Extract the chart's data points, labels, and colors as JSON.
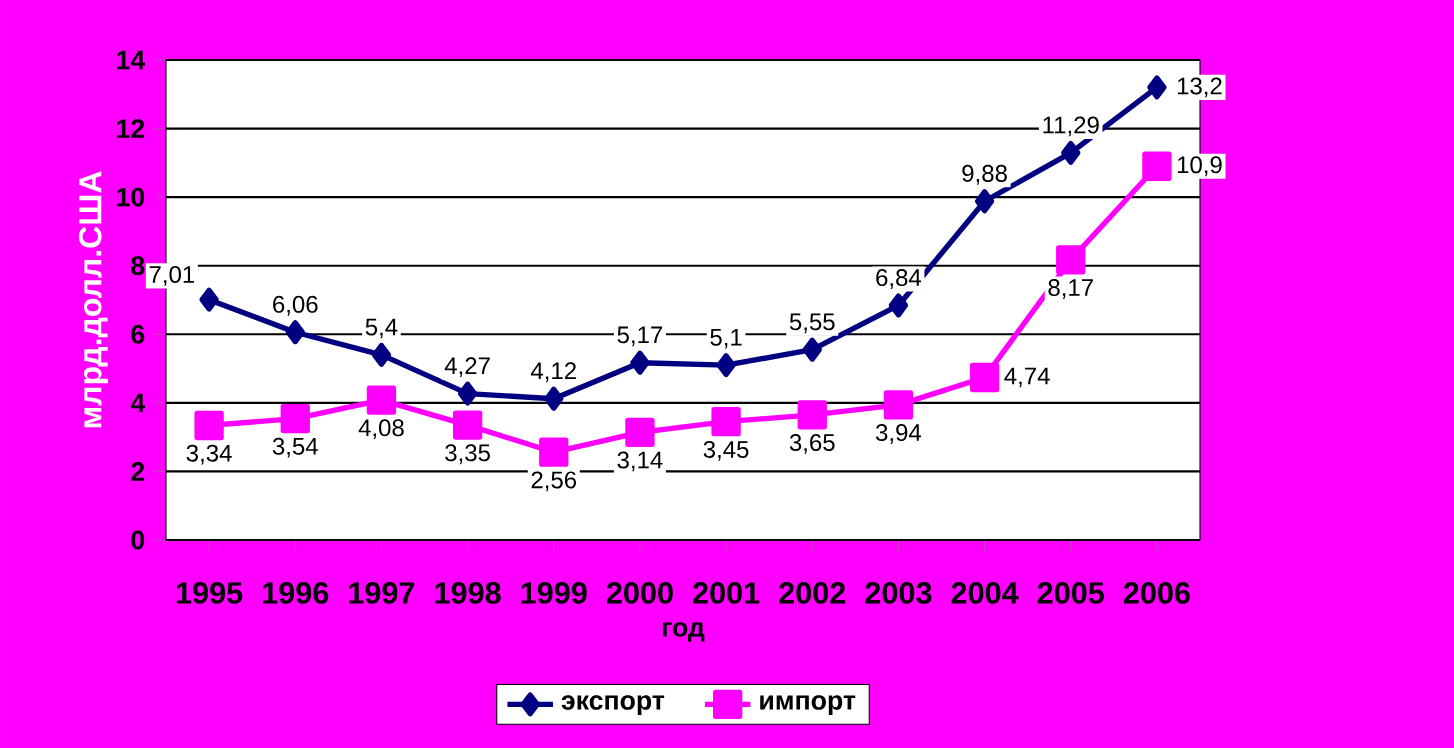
{
  "chart_data": {
    "type": "line",
    "xlabel": "год",
    "ylabel": "млрд.долл.США",
    "categories": [
      "1995",
      "1996",
      "1997",
      "1998",
      "1999",
      "2000",
      "2001",
      "2002",
      "2003",
      "2004",
      "2005",
      "2006"
    ],
    "series": [
      {
        "name": "экспорт",
        "color": "#000080",
        "marker": "diamond",
        "values": [
          7.01,
          6.06,
          5.4,
          4.27,
          4.12,
          5.17,
          5.1,
          5.55,
          6.84,
          9.88,
          11.29,
          13.2
        ],
        "value_labels": [
          "7,01",
          "6,06",
          "5,4",
          "4,27",
          "4,12",
          "5,17",
          "5,1",
          "5,55",
          "6,84",
          "9,88",
          "11,29",
          "13,2"
        ]
      },
      {
        "name": "импорт",
        "color": "#ff00ff",
        "marker": "square",
        "values": [
          3.34,
          3.54,
          4.08,
          3.35,
          2.56,
          3.14,
          3.45,
          3.65,
          3.94,
          4.74,
          8.17,
          10.9
        ],
        "value_labels": [
          "3,34",
          "3,54",
          "4,08",
          "3,35",
          "2,56",
          "3,14",
          "3,45",
          "3,65",
          "3,94",
          "4,74",
          "8,17",
          "10,9"
        ]
      }
    ],
    "ylim": [
      0,
      14
    ],
    "yticks": [
      0,
      2,
      4,
      6,
      8,
      10,
      12,
      14
    ],
    "grid": "y",
    "legend": "bottom"
  }
}
